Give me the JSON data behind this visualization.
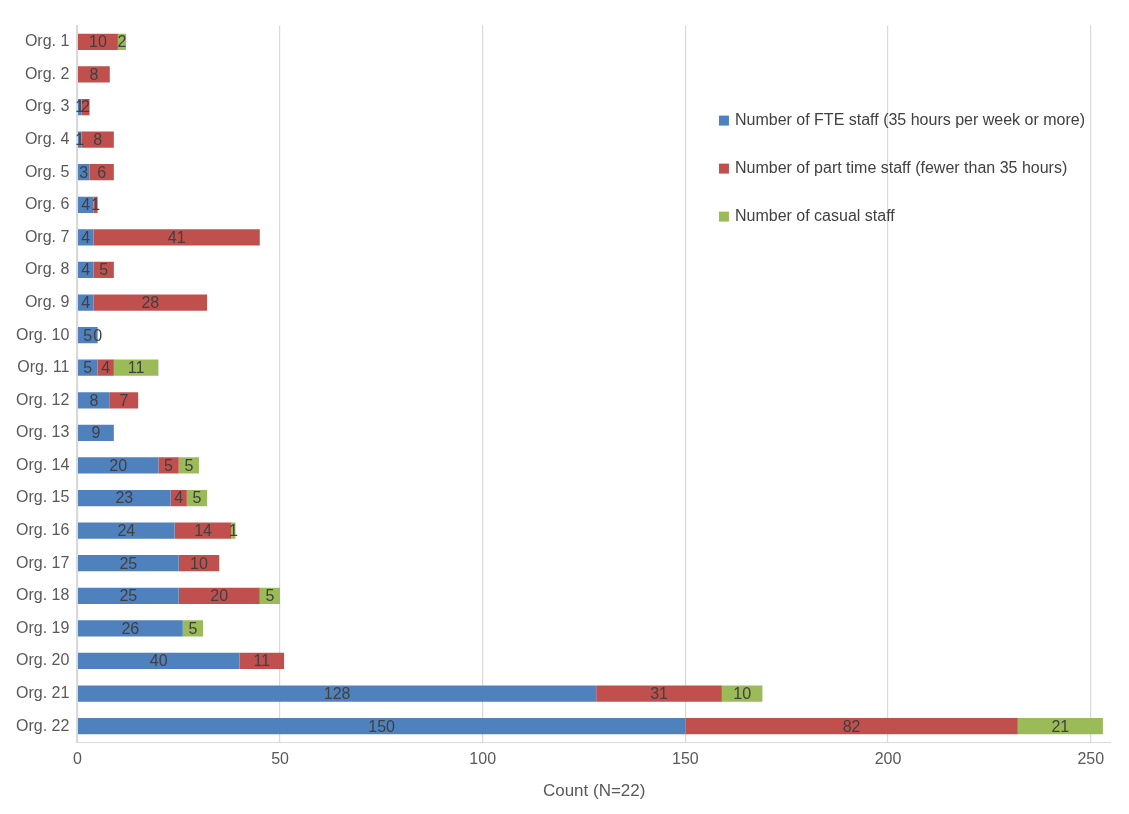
{
  "chart_data": {
    "type": "bar",
    "orientation": "horizontal",
    "stacked": true,
    "xlabel": "Count (N=22)",
    "categories": [
      "Org. 1",
      "Org. 2",
      "Org. 3",
      "Org. 4",
      "Org. 5",
      "Org. 6",
      "Org. 7",
      "Org. 8",
      "Org. 9",
      "Org. 10",
      "Org. 11",
      "Org. 12",
      "Org. 13",
      "Org. 14",
      "Org. 15",
      "Org. 16",
      "Org. 17",
      "Org. 18",
      "Org. 19",
      "Org. 20",
      "Org. 21",
      "Org. 22"
    ],
    "series": [
      {
        "name": "Number of FTE staff (35 hours per week or more)",
        "color": "#4f81bd",
        "values": [
          null,
          null,
          1,
          1,
          3,
          4,
          4,
          4,
          4,
          5,
          5,
          8,
          9,
          20,
          23,
          24,
          25,
          25,
          26,
          40,
          128,
          150
        ]
      },
      {
        "name": "Number of part time staff (fewer than 35 hours)",
        "color": "#c0504d",
        "values": [
          10,
          8,
          2,
          8,
          6,
          1,
          41,
          5,
          28,
          0,
          4,
          7,
          null,
          5,
          4,
          14,
          10,
          20,
          null,
          11,
          31,
          82
        ]
      },
      {
        "name": "Number of casual staff",
        "color": "#9bbb59",
        "values": [
          2,
          null,
          null,
          null,
          null,
          null,
          null,
          null,
          null,
          null,
          11,
          null,
          null,
          5,
          5,
          1,
          null,
          5,
          5,
          null,
          10,
          21
        ]
      }
    ],
    "xlim": [
      0,
      255
    ],
    "xticks": [
      0,
      50,
      100,
      150,
      200,
      250
    ],
    "grid": "x",
    "legend": "top right",
    "data_labels": true
  }
}
